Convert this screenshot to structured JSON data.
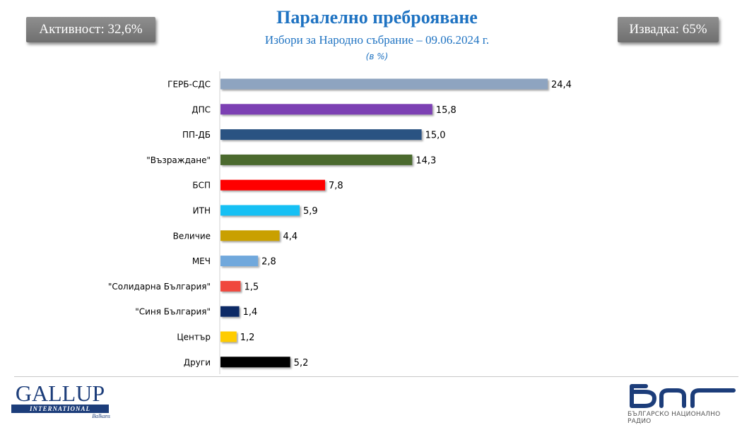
{
  "header": {
    "title": "Паралелно преброяване",
    "subtitle": "Избори за Народно събрание – 09.06.2024  г.",
    "units": "(в %)"
  },
  "badges": {
    "turnout": "Активност: 32,6%",
    "sample": "Извадка: 65%"
  },
  "logos": {
    "gallup_word": "GALLUP",
    "gallup_bar": "INTERNATIONAL",
    "gallup_sub": "Balkans",
    "bnr_sub": "БЪЛГАРСКО НАЦИОНАЛНО РАДИО"
  },
  "chart_data": {
    "type": "bar",
    "orientation": "horizontal",
    "title": "Паралелно преброяване",
    "subtitle": "Избори за Народно събрание – 09.06.2024  г.",
    "units": "(в %)",
    "categories": [
      "ГЕРБ-СДС",
      "ДПС",
      "ПП-ДБ",
      "\"Възраждане\"",
      "БСП",
      "ИТН",
      "Величие",
      "МЕЧ",
      "\"Солидарна България\"",
      "\"Синя България\"",
      "Център",
      "Други"
    ],
    "values": [
      24.4,
      15.8,
      15.0,
      14.3,
      7.8,
      5.9,
      4.4,
      2.8,
      1.5,
      1.4,
      1.2,
      5.2
    ],
    "value_labels": [
      "24,4",
      "15,8",
      "15,0",
      "14,3",
      "7,8",
      "5,9",
      "4,4",
      "2,8",
      "1,5",
      "1,4",
      "1,2",
      "5,2"
    ],
    "colors": [
      "#8ea4c0",
      "#7b3fb3",
      "#2c5282",
      "#4b6b2e",
      "#ff0000",
      "#15c0f4",
      "#c9a000",
      "#6fa8dc",
      "#f0473c",
      "#0d2a66",
      "#ffcc00",
      "#000000"
    ],
    "xlim": [
      0,
      24.4
    ],
    "grid": false,
    "legend": "none"
  },
  "colors": {
    "title": "#1f73c2",
    "badge": "#808080"
  }
}
